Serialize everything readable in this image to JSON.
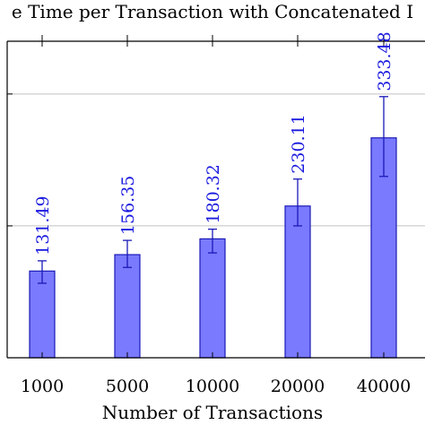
{
  "chart_data": {
    "type": "bar",
    "title": "e Time per Transaction with Concatenated I",
    "xlabel": "Number of Transactions",
    "ylabel": "",
    "categories": [
      "1000",
      "5000",
      "10000",
      "20000",
      "40000"
    ],
    "values": [
      131.49,
      156.35,
      180.32,
      230.11,
      333.48
    ],
    "error_low": [
      113,
      137,
      159,
      200,
      275
    ],
    "error_high": [
      147,
      178,
      195,
      271,
      396
    ],
    "data_labels": [
      "131.49",
      "156.35",
      "180.32",
      "230.11",
      "333.48"
    ],
    "ylim": [
      0,
      480
    ],
    "y_gridlines": [
      200,
      400
    ],
    "grid": true,
    "legend": "none",
    "bar_fill": "#7a7aff",
    "bar_stroke": "#1a1ab8",
    "error_color": "#1a1ab8",
    "label_color": "#1a1adf",
    "grid_color": "#c0c0c0"
  }
}
